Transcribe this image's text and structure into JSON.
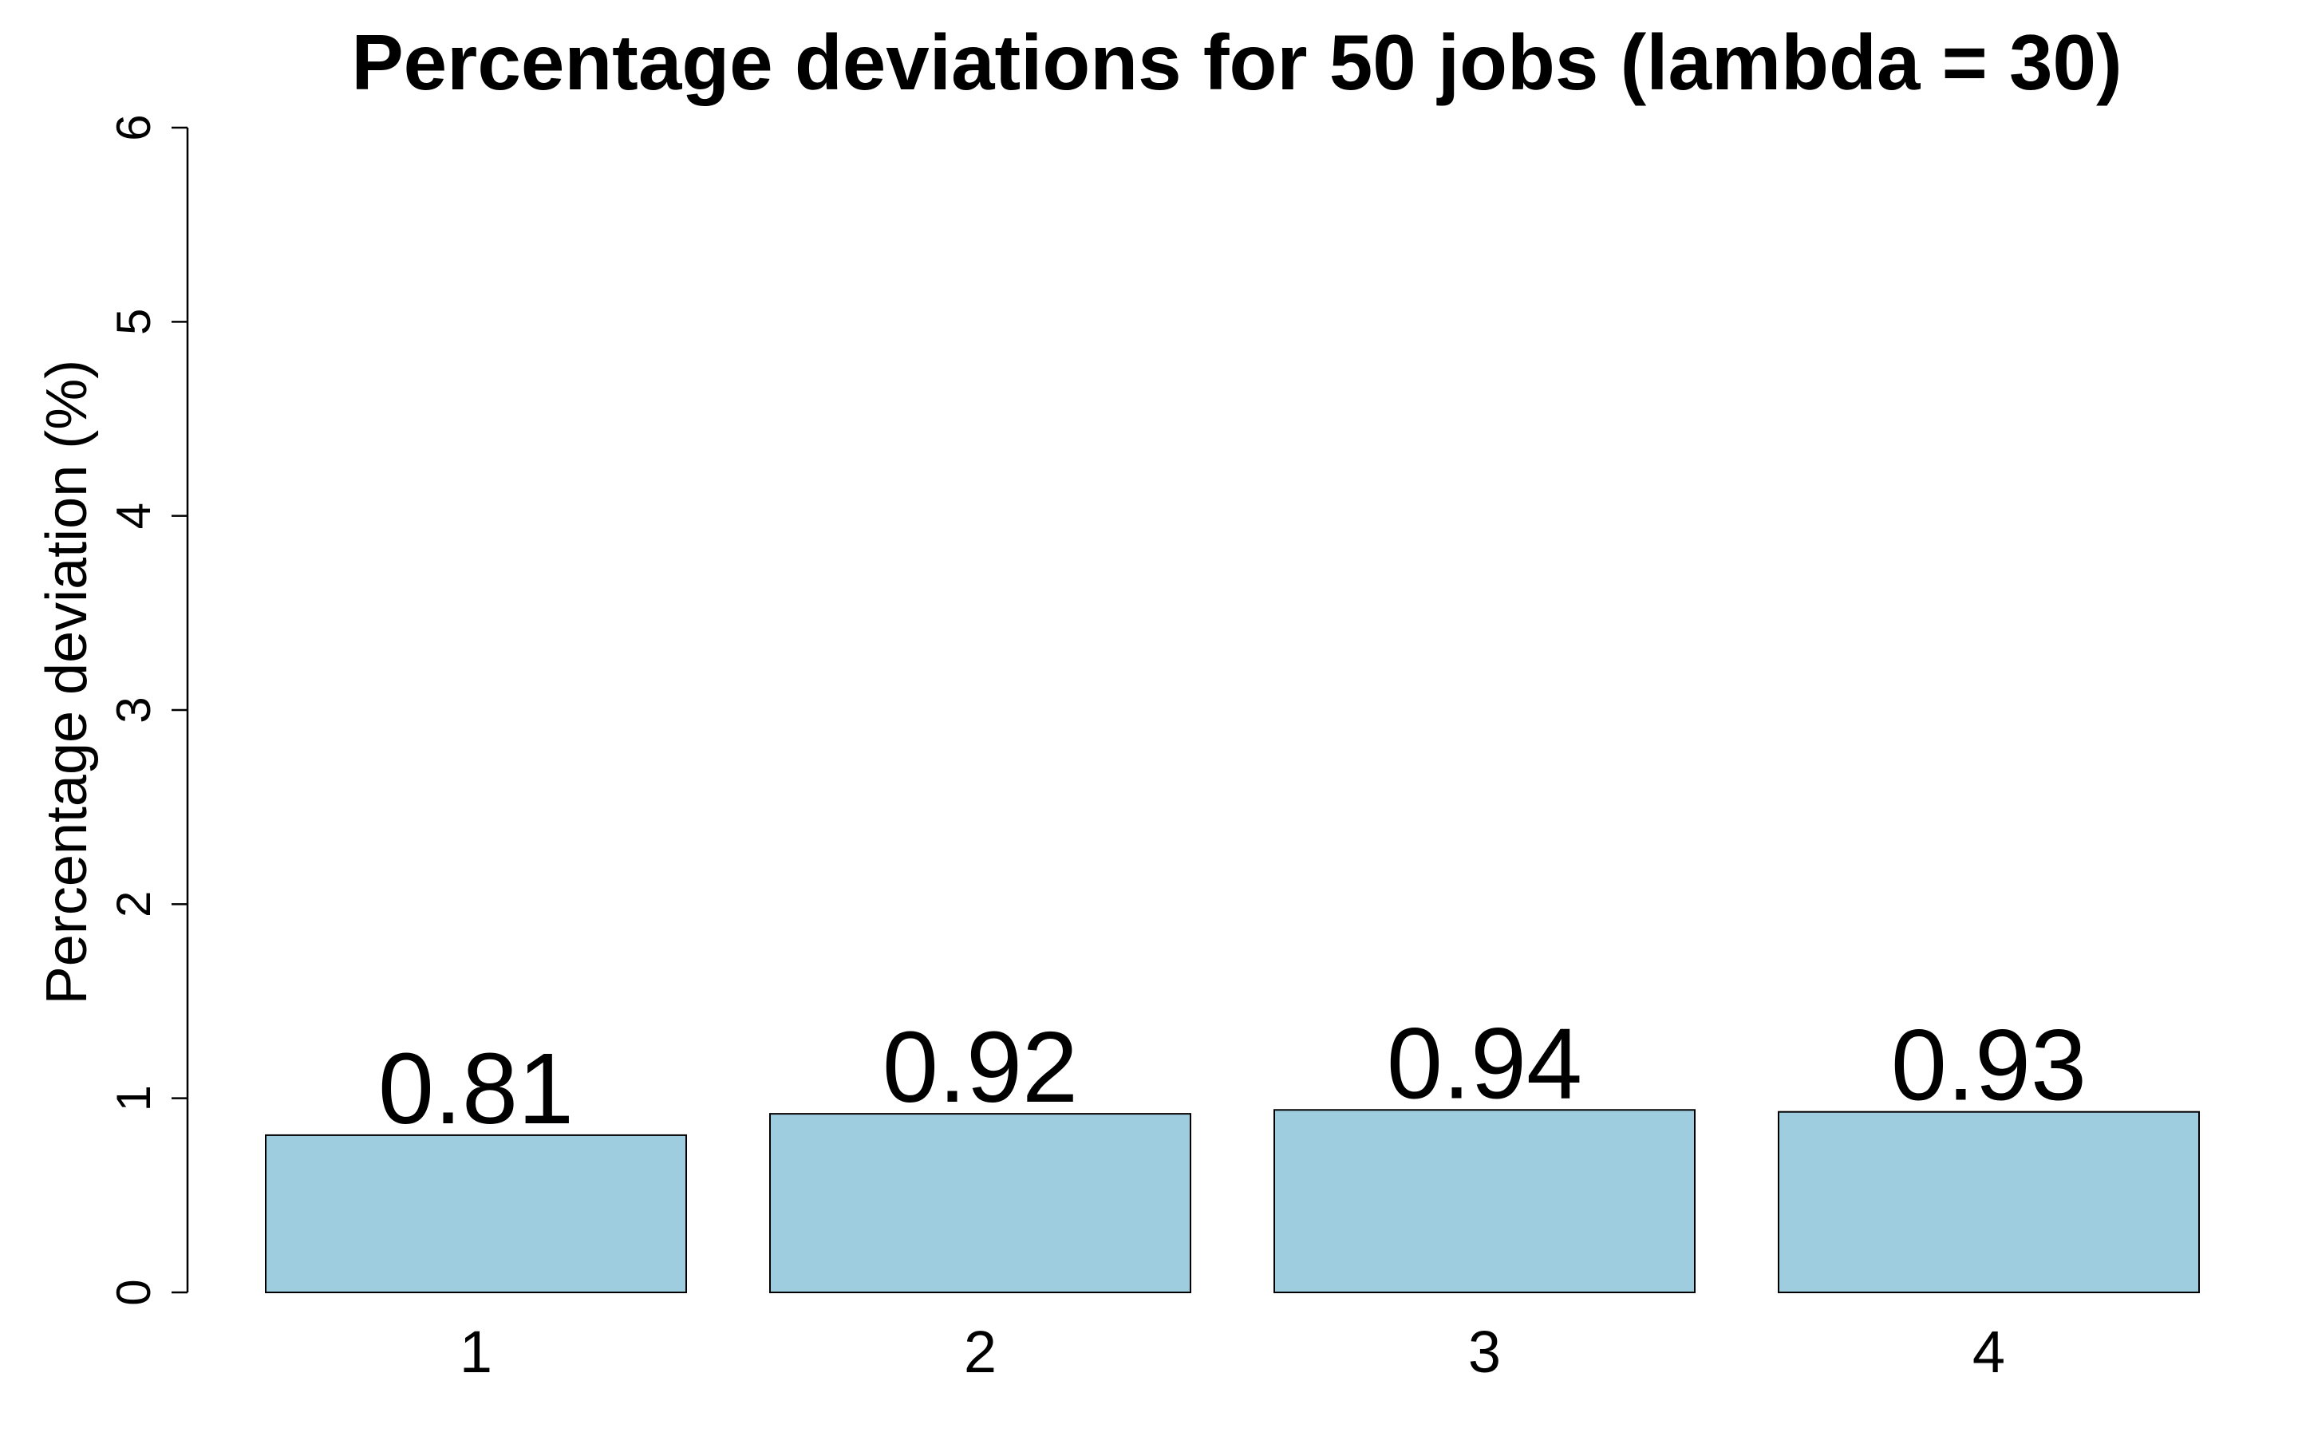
{
  "chart_data": {
    "type": "bar",
    "title": "Percentage deviations for 50 jobs (lambda = 30)",
    "xlabel": "",
    "ylabel": "Percentage deviation (%)",
    "categories": [
      "1",
      "2",
      "3",
      "4"
    ],
    "values": [
      0.81,
      0.92,
      0.94,
      0.93
    ],
    "data_labels": [
      "0.81",
      "0.92",
      "0.94",
      "0.93"
    ],
    "ylim": [
      0,
      6
    ],
    "yticks": [
      0,
      1,
      2,
      3,
      4,
      5,
      6
    ],
    "ytick_labels": [
      "0",
      "1",
      "2",
      "3",
      "4",
      "5",
      "6"
    ],
    "grid": false,
    "legend": "none",
    "colors": {
      "bar_fill": "#9ecde0",
      "bar_stroke": "#000000"
    }
  }
}
